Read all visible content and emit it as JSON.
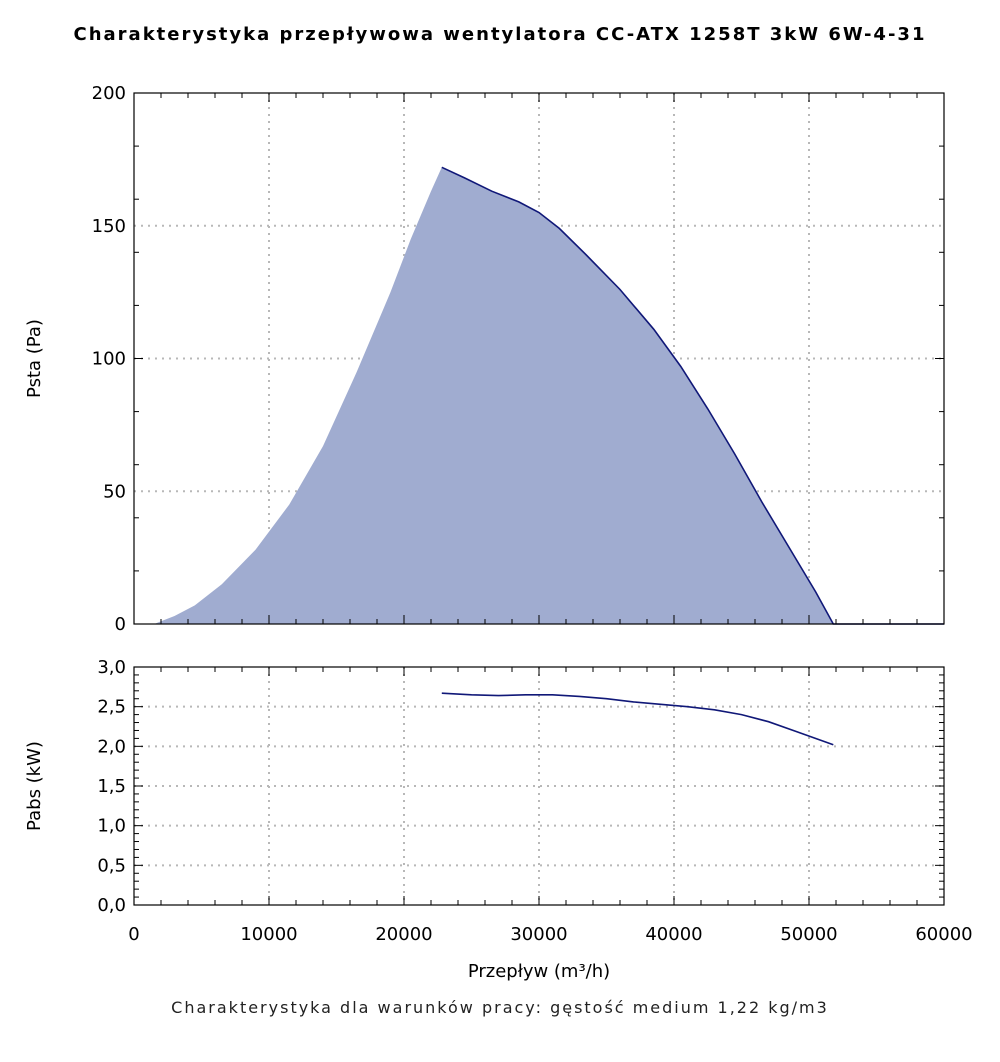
{
  "title": "Charakterystyka przepływowa wentylatora CC-ATX 1258T 3kW 6W-4-31",
  "subtitle": "Charakterystyka dla warunków pracy: gęstość medium 1,22 kg/m3",
  "chart_data": [
    {
      "type": "area",
      "ylabel": "Psta (Pa)",
      "xlim": [
        0,
        60000
      ],
      "ylim": [
        0,
        200
      ],
      "grid": true,
      "yticks": [
        0,
        50,
        100,
        150,
        200
      ],
      "ytick_labels": [
        "0",
        "50",
        "100",
        "150",
        "200"
      ],
      "fill_color": "#a0acd0",
      "line_color": "#101878",
      "fill_x": [
        0,
        1500,
        2000,
        3000,
        4500,
        6500,
        9000,
        11500,
        14000,
        16500,
        19000,
        20500,
        22000,
        22800
      ],
      "fill_y": [
        0,
        0,
        1,
        3,
        7,
        15,
        28,
        45,
        67,
        95,
        125,
        145,
        163,
        172
      ],
      "series": [
        {
          "x": [
            22800,
            24500,
            26500,
            28500,
            30000,
            31500,
            33500,
            36000,
            38500,
            40500,
            42500,
            44500,
            46500,
            48500,
            50500,
            51800,
            60000
          ],
          "values": [
            172,
            168,
            163,
            159,
            155,
            149,
            139,
            126,
            111,
            97,
            81,
            64,
            46,
            29,
            12,
            0,
            0
          ]
        }
      ]
    },
    {
      "type": "line",
      "xlabel": "Przepływ (m³/h)",
      "ylabel": "Pabs (kW)",
      "xlim": [
        0,
        60000
      ],
      "ylim": [
        0,
        3
      ],
      "grid": true,
      "xticks": [
        0,
        10000,
        20000,
        30000,
        40000,
        50000,
        60000
      ],
      "xtick_labels": [
        "0",
        "10000",
        "20000",
        "30000",
        "40000",
        "50000",
        "60000"
      ],
      "yticks": [
        0,
        0.5,
        1,
        1.5,
        2,
        2.5,
        3
      ],
      "ytick_labels": [
        "0,0",
        "0,5",
        "1,0",
        "1,5",
        "2,0",
        "2,5",
        "3,0"
      ],
      "line_color": "#101878",
      "series": [
        {
          "x": [
            22800,
            25000,
            27000,
            29000,
            31000,
            33000,
            35000,
            37000,
            39000,
            41000,
            43000,
            45000,
            47000,
            49000,
            51800
          ],
          "values": [
            2.67,
            2.65,
            2.64,
            2.65,
            2.65,
            2.63,
            2.6,
            2.56,
            2.53,
            2.5,
            2.46,
            2.4,
            2.31,
            2.19,
            2.02
          ]
        }
      ]
    }
  ]
}
